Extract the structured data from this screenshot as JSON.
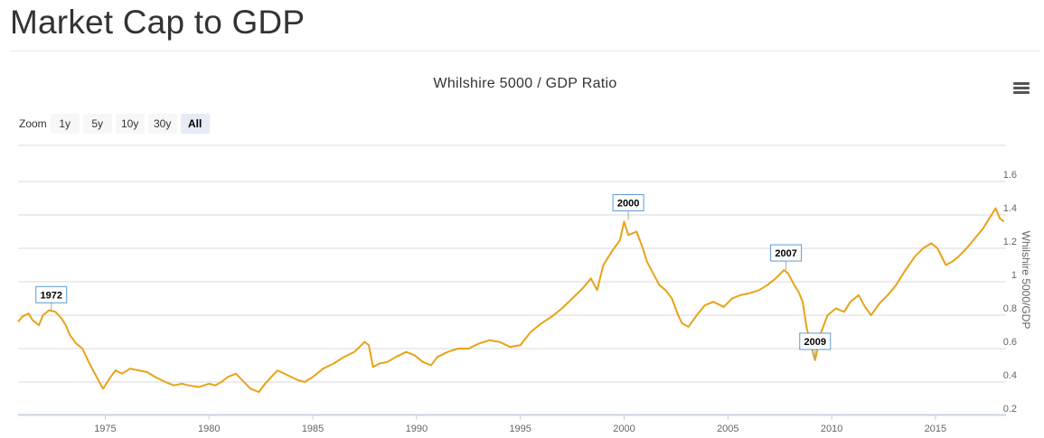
{
  "page": {
    "title": "Market Cap to GDP"
  },
  "toolbar": {
    "zoom_label": "Zoom",
    "zoom_options": [
      "1y",
      "5y",
      "10y",
      "30y",
      "All"
    ],
    "selected_zoom": "All"
  },
  "colors": {
    "line": "#e8a317",
    "grid": "#d8d8d8",
    "flag_border": "#5b9bd5"
  },
  "chart_data": {
    "type": "line",
    "title": "Whilshire 5000 / GDP Ratio",
    "ylabel": "Whilshire 5000/GDP",
    "xlabel": "",
    "xlim": [
      1970.8,
      2018.4
    ],
    "ylim": [
      0.2,
      1.6
    ],
    "x_ticks": [
      1975,
      1980,
      1985,
      1990,
      1995,
      2000,
      2005,
      2010,
      2015
    ],
    "y_ticks": [
      0.2,
      0.4,
      0.6,
      0.8,
      1,
      1.2,
      1.4,
      1.6
    ],
    "y_axis_position": "right",
    "grid": true,
    "series": [
      {
        "x": [
          1970.8,
          1971.0,
          1971.3,
          1971.5,
          1971.8,
          1972.0,
          1972.3,
          1972.6,
          1972.9,
          1973.1,
          1973.3,
          1973.6,
          1973.9,
          1974.2,
          1974.5,
          1974.8,
          1974.9,
          1975.2,
          1975.5,
          1975.8,
          1976.2,
          1976.6,
          1977.0,
          1977.4,
          1977.9,
          1978.3,
          1978.7,
          1979.0,
          1979.5,
          1980.0,
          1980.3,
          1980.6,
          1980.9,
          1981.3,
          1981.6,
          1982.0,
          1982.4,
          1982.7,
          1983.0,
          1983.3,
          1983.8,
          1984.3,
          1984.6,
          1985.0,
          1985.5,
          1986.0,
          1986.5,
          1987.0,
          1987.5,
          1987.7,
          1987.9,
          1988.2,
          1988.6,
          1989.0,
          1989.5,
          1989.9,
          1990.3,
          1990.7,
          1991.0,
          1991.5,
          1992.0,
          1992.5,
          1993.0,
          1993.5,
          1994.0,
          1994.5,
          1995.0,
          1995.5,
          1996.0,
          1996.5,
          1997.0,
          1997.5,
          1998.0,
          1998.4,
          1998.7,
          1999.0,
          1999.4,
          1999.8,
          2000.0,
          2000.2,
          2000.6,
          2000.9,
          2001.1,
          2001.4,
          2001.7,
          2002.0,
          2002.3,
          2002.6,
          2002.8,
          2003.1,
          2003.5,
          2003.9,
          2004.3,
          2004.8,
          2005.2,
          2005.6,
          2006.0,
          2006.5,
          2006.9,
          2007.3,
          2007.7,
          2007.9,
          2008.2,
          2008.4,
          2008.6,
          2008.8,
          2009.0,
          2009.2,
          2009.5,
          2009.8,
          2010.2,
          2010.6,
          2010.9,
          2011.3,
          2011.6,
          2011.9,
          2012.3,
          2012.7,
          2013.1,
          2013.5,
          2014.0,
          2014.4,
          2014.8,
          2015.1,
          2015.5,
          2015.8,
          2016.1,
          2016.5,
          2016.9,
          2017.3,
          2017.7,
          2017.9,
          2018.1,
          2018.3
        ],
        "y": [
          0.76,
          0.79,
          0.81,
          0.77,
          0.74,
          0.8,
          0.83,
          0.82,
          0.78,
          0.74,
          0.68,
          0.63,
          0.6,
          0.52,
          0.45,
          0.38,
          0.36,
          0.42,
          0.47,
          0.45,
          0.48,
          0.47,
          0.46,
          0.43,
          0.4,
          0.38,
          0.39,
          0.38,
          0.37,
          0.39,
          0.38,
          0.4,
          0.43,
          0.45,
          0.41,
          0.36,
          0.34,
          0.39,
          0.43,
          0.47,
          0.44,
          0.41,
          0.4,
          0.43,
          0.48,
          0.51,
          0.55,
          0.58,
          0.64,
          0.62,
          0.49,
          0.51,
          0.52,
          0.55,
          0.58,
          0.56,
          0.52,
          0.5,
          0.55,
          0.58,
          0.6,
          0.6,
          0.63,
          0.65,
          0.64,
          0.61,
          0.62,
          0.7,
          0.75,
          0.79,
          0.84,
          0.9,
          0.96,
          1.02,
          0.95,
          1.1,
          1.18,
          1.25,
          1.36,
          1.28,
          1.3,
          1.2,
          1.12,
          1.05,
          0.98,
          0.95,
          0.9,
          0.8,
          0.75,
          0.73,
          0.8,
          0.86,
          0.88,
          0.85,
          0.9,
          0.92,
          0.93,
          0.95,
          0.98,
          1.02,
          1.07,
          1.05,
          0.98,
          0.94,
          0.88,
          0.72,
          0.62,
          0.53,
          0.7,
          0.8,
          0.84,
          0.82,
          0.88,
          0.92,
          0.85,
          0.8,
          0.87,
          0.92,
          0.98,
          1.06,
          1.15,
          1.2,
          1.23,
          1.2,
          1.1,
          1.12,
          1.15,
          1.2,
          1.26,
          1.32,
          1.4,
          1.44,
          1.38,
          1.36
        ]
      }
    ],
    "flags": [
      {
        "label": "1972",
        "x": 1972.4,
        "y": 0.82
      },
      {
        "label": "2000",
        "x": 2000.2,
        "y": 1.37
      },
      {
        "label": "2007",
        "x": 2007.8,
        "y": 1.07
      },
      {
        "label": "2009",
        "x": 2009.2,
        "y": 0.53
      }
    ]
  }
}
